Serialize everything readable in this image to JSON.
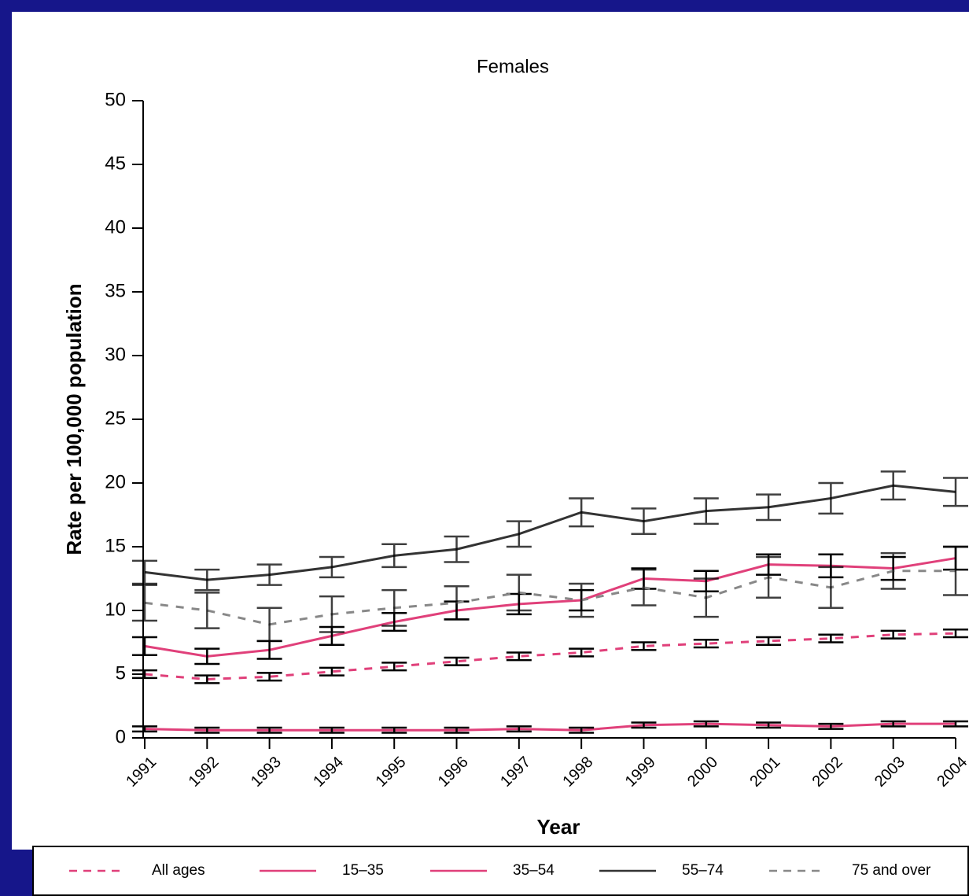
{
  "chart_data": {
    "type": "line",
    "title": "Females",
    "x_label": "Year",
    "y_label": "Rate per 100,000 population",
    "categories": [
      "1991",
      "1992",
      "1993",
      "1994",
      "1995",
      "1996",
      "1997",
      "1998",
      "1999",
      "2000",
      "2001",
      "2002",
      "2003",
      "2004"
    ],
    "ylim": [
      0,
      50
    ],
    "yticks": [
      0,
      5,
      10,
      15,
      20,
      25,
      30,
      35,
      40,
      45,
      50
    ],
    "series": [
      {
        "name": "All ages",
        "color": "#e0407a",
        "style": "dashed",
        "values": [
          5.0,
          4.6,
          4.8,
          5.2,
          5.6,
          6.0,
          6.4,
          6.7,
          7.2,
          7.4,
          7.6,
          7.8,
          8.1,
          8.2
        ],
        "errors": [
          0.3,
          0.3,
          0.3,
          0.3,
          0.3,
          0.3,
          0.3,
          0.3,
          0.3,
          0.3,
          0.3,
          0.3,
          0.3,
          0.3
        ]
      },
      {
        "name": "15–35",
        "color": "#e0407a",
        "style": "solid",
        "values": [
          0.7,
          0.6,
          0.6,
          0.6,
          0.6,
          0.6,
          0.7,
          0.6,
          1.0,
          1.1,
          1.0,
          0.9,
          1.1,
          1.1
        ],
        "errors": [
          0.2,
          0.2,
          0.2,
          0.2,
          0.2,
          0.2,
          0.2,
          0.2,
          0.2,
          0.2,
          0.2,
          0.2,
          0.2,
          0.2
        ]
      },
      {
        "name": "35–54",
        "color": "#e0407a",
        "style": "solid",
        "values": [
          7.2,
          6.4,
          6.9,
          8.0,
          9.1,
          10.0,
          10.5,
          10.8,
          12.5,
          12.3,
          13.6,
          13.5,
          13.3,
          14.1
        ],
        "errors": [
          0.7,
          0.6,
          0.7,
          0.7,
          0.7,
          0.7,
          0.8,
          0.8,
          0.8,
          0.8,
          0.8,
          0.9,
          0.9,
          0.9
        ]
      },
      {
        "name": "55–74",
        "color": "#333333",
        "style": "solid",
        "values": [
          13.0,
          12.4,
          12.8,
          13.4,
          14.3,
          14.8,
          16.0,
          17.7,
          17.0,
          17.8,
          18.1,
          18.8,
          19.8,
          19.3
        ],
        "errors": [
          0.9,
          0.8,
          0.8,
          0.8,
          0.9,
          1.0,
          1.0,
          1.1,
          1.0,
          1.0,
          1.0,
          1.2,
          1.1,
          1.1
        ]
      },
      {
        "name": "75 and over",
        "color": "#888888",
        "style": "dashed",
        "values": [
          10.6,
          10.0,
          8.9,
          9.7,
          10.2,
          10.6,
          11.4,
          10.8,
          11.8,
          11.0,
          12.6,
          11.8,
          13.1,
          13.1
        ],
        "errors": [
          1.4,
          1.4,
          1.3,
          1.4,
          1.4,
          1.3,
          1.4,
          1.3,
          1.4,
          1.5,
          1.6,
          1.6,
          1.4,
          1.9
        ]
      }
    ]
  }
}
